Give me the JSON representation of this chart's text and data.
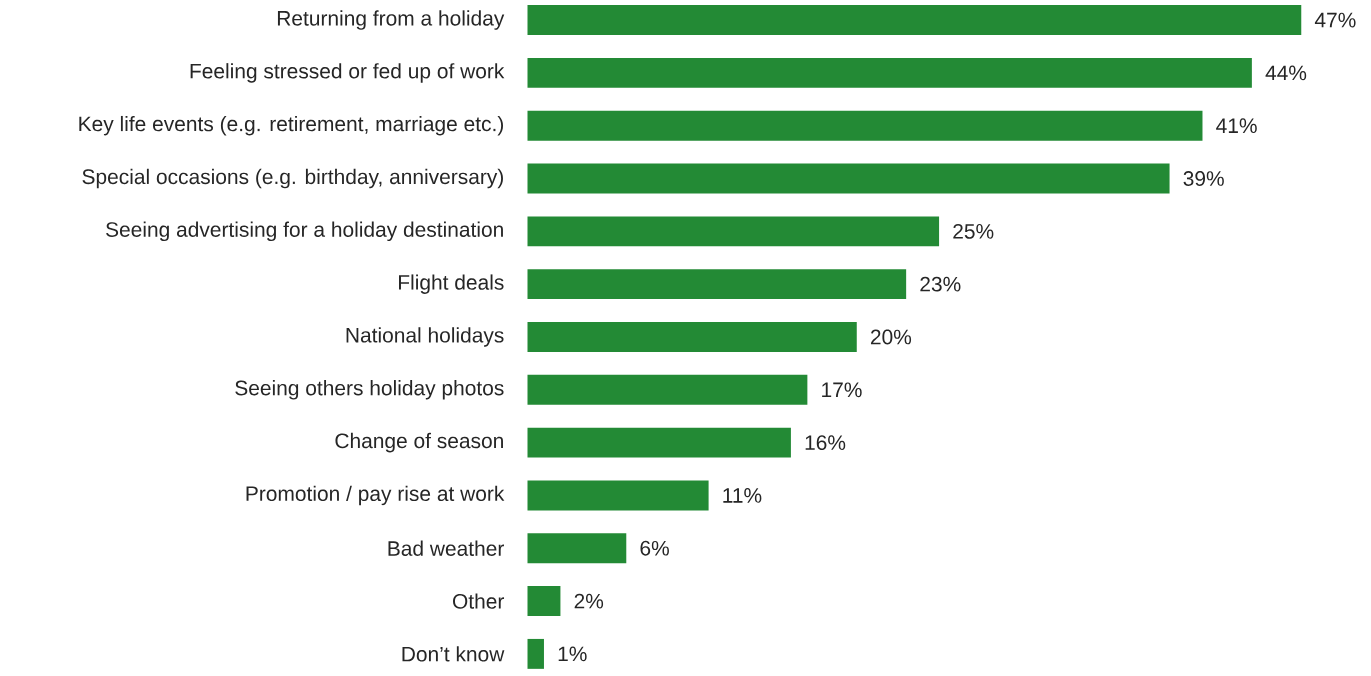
{
  "chart_data": {
    "type": "bar",
    "orientation": "horizontal",
    "categories": [
      "Returning from a holiday",
      "Feeling stressed or fed up of work",
      "Key life events (e.g. retirement, marriage etc.)",
      "Special occasions (e.g. birthday, anniversary)",
      "Seeing advertising for a holiday destination",
      "Flight deals",
      "National holidays",
      "Seeing others holiday photos",
      "Change of season",
      "Promotion / pay rise at work",
      "Bad weather",
      "Other",
      "Don’t know"
    ],
    "values": [
      47,
      44,
      41,
      39,
      25,
      23,
      20,
      17,
      16,
      11,
      6,
      2,
      1
    ],
    "value_labels": [
      "47%",
      "44%",
      "41%",
      "39%",
      "25%",
      "23%",
      "20%",
      "17%",
      "16%",
      "11%",
      "6%",
      "2%",
      "1%"
    ],
    "color": "#238a35"
  }
}
